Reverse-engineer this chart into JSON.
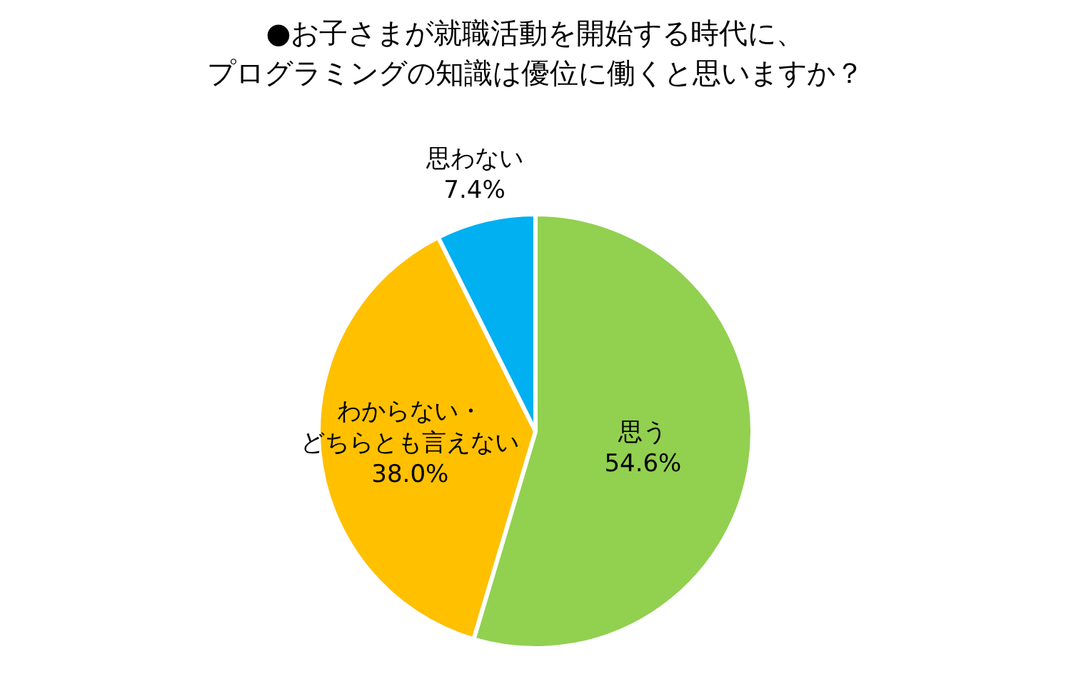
{
  "chart_data": {
    "type": "pie",
    "title": "●お子さまが就職活動を開始する時代に、プログラミングの知識は優位に働くと思いますか？",
    "categories": [
      "思う",
      "わからない・どちらとも言えない",
      "思わない"
    ],
    "values": [
      54.6,
      38.0,
      7.4
    ],
    "value_labels": [
      "54.6%",
      "38.0%",
      "7.4%"
    ],
    "colors": [
      "#92d050",
      "#ffc000",
      "#00b0f0"
    ]
  }
}
